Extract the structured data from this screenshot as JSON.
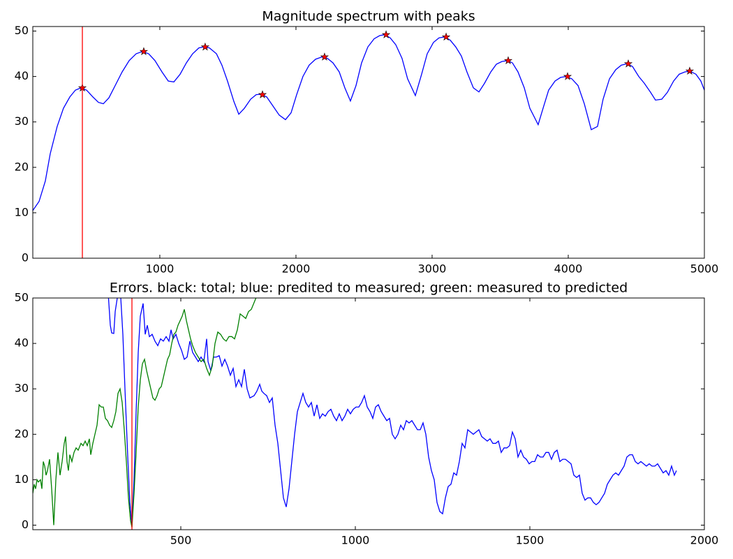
{
  "chart_data": [
    {
      "type": "line",
      "title": "Magnitude spectrum with peaks",
      "xlim": [
        67,
        5000
      ],
      "ylim": [
        0,
        51
      ],
      "xticks": [
        1000,
        2000,
        3000,
        4000,
        5000
      ],
      "yticks": [
        0,
        10,
        20,
        30,
        40,
        50
      ],
      "vline": 431,
      "vline_color": "#ff0000",
      "series": [
        {
          "color": "#0000ff",
          "x": [
            67,
            113,
            159,
            195,
            246,
            292,
            339,
            380,
            421,
            462,
            508,
            549,
            585,
            626,
            672,
            723,
            775,
            826,
            872,
            918,
            964,
            1016,
            1062,
            1103,
            1149,
            1195,
            1241,
            1287,
            1323,
            1364,
            1416,
            1456,
            1497,
            1544,
            1580,
            1621,
            1667,
            1708,
            1744,
            1785,
            1831,
            1877,
            1923,
            1964,
            2005,
            2051,
            2097,
            2144,
            2190,
            2231,
            2272,
            2318,
            2359,
            2400,
            2441,
            2482,
            2528,
            2574,
            2615,
            2651,
            2692,
            2733,
            2779,
            2820,
            2877,
            2923,
            2964,
            3010,
            3051,
            3092,
            3133,
            3174,
            3215,
            3256,
            3303,
            3344,
            3385,
            3431,
            3472,
            3513,
            3554,
            3590,
            3631,
            3677,
            3718,
            3779,
            3815,
            3856,
            3903,
            3944,
            3985,
            4026,
            4072,
            4118,
            4169,
            4215,
            4256,
            4303,
            4349,
            4390,
            4431,
            4472,
            4518,
            4559,
            4605,
            4641,
            4687,
            4728,
            4774,
            4815,
            4856,
            4892,
            4938,
            4974,
            5000
          ],
          "values": [
            10.5,
            12.5,
            17,
            23,
            29,
            33,
            35.5,
            37,
            37.5,
            37,
            35.5,
            34.3,
            34,
            35.3,
            38,
            41,
            43.5,
            45,
            45.5,
            45,
            43.5,
            41,
            39,
            38.8,
            40.5,
            43,
            45,
            46.3,
            46.5,
            46.3,
            45,
            42.5,
            39,
            34.5,
            31.7,
            33,
            35,
            36,
            36.1,
            35.5,
            33.5,
            31.5,
            30.5,
            32,
            36,
            40,
            42.5,
            43.8,
            44.3,
            44,
            43,
            41,
            37.5,
            34.6,
            38,
            43,
            46.5,
            48.3,
            49,
            49.2,
            48.5,
            47,
            44,
            39.5,
            35.8,
            40.5,
            45,
            47.5,
            48.5,
            48.7,
            48,
            46.5,
            44.5,
            41,
            37.5,
            36.6,
            38.5,
            41,
            42.7,
            43.3,
            43.5,
            43,
            41,
            37.5,
            33,
            29.4,
            33,
            37,
            39,
            39.8,
            40,
            39.5,
            38,
            34,
            28.3,
            29,
            35,
            39.5,
            41.5,
            42.5,
            42.8,
            42.2,
            40,
            38.5,
            36.5,
            34.8,
            35,
            36.5,
            39,
            40.5,
            41,
            41.2,
            40.5,
            39,
            37
          ]
        },
        {
          "color": "#ff0000",
          "marker": "star",
          "x": [
            431,
            882,
            1333,
            1754,
            2210,
            2662,
            3103,
            3559,
            3995,
            4441,
            4892
          ],
          "values": [
            37.5,
            45.5,
            46.5,
            36,
            44.3,
            49.2,
            48.7,
            43.5,
            40,
            42.8,
            41.2
          ]
        }
      ]
    },
    {
      "type": "line",
      "title": "Errors. black: total; blue: predited to measured; green: measured to predicted",
      "xlim": [
        76,
        2000
      ],
      "ylim": [
        -1,
        50
      ],
      "xticks": [
        500,
        1000,
        1500,
        2000
      ],
      "yticks": [
        0,
        10,
        20,
        30,
        40,
        50
      ],
      "vline": 360,
      "vline_color": "#ff0000",
      "series": [
        {
          "color": "#0000ff",
          "x": [
            292,
            298,
            302,
            308,
            312,
            318,
            322,
            328,
            334,
            340,
            348,
            354,
            360,
            366,
            372,
            378,
            384,
            392,
            398,
            404,
            410,
            418,
            426,
            434,
            442,
            450,
            458,
            466,
            472,
            478,
            486,
            494,
            502,
            510,
            518,
            526,
            534,
            542,
            550,
            558,
            566,
            574,
            578,
            586,
            594,
            602,
            610,
            618,
            626,
            634,
            642,
            650,
            658,
            666,
            674,
            682,
            690,
            698,
            710,
            718,
            726,
            732,
            738,
            746,
            754,
            762,
            770,
            778,
            786,
            794,
            802,
            810,
            818,
            826,
            834,
            842,
            850,
            858,
            866,
            874,
            882,
            890,
            898,
            906,
            914,
            922,
            930,
            938,
            946,
            954,
            962,
            970,
            978,
            986,
            994,
            1002,
            1010,
            1018,
            1026,
            1034,
            1042,
            1050,
            1058,
            1066,
            1074,
            1082,
            1090,
            1098,
            1106,
            1114,
            1122,
            1130,
            1138,
            1146,
            1154,
            1162,
            1170,
            1178,
            1186,
            1194,
            1202,
            1210,
            1218,
            1226,
            1234,
            1242,
            1250,
            1258,
            1266,
            1274,
            1282,
            1290,
            1298,
            1306,
            1314,
            1322,
            1330,
            1338,
            1346,
            1354,
            1362,
            1370,
            1378,
            1386,
            1394,
            1402,
            1410,
            1418,
            1426,
            1434,
            1442,
            1450,
            1458,
            1466,
            1474,
            1482,
            1490,
            1498,
            1506,
            1514,
            1522,
            1530,
            1538,
            1546,
            1554,
            1562,
            1570,
            1578,
            1586,
            1594,
            1602,
            1610,
            1618,
            1626,
            1634,
            1642,
            1650,
            1658,
            1666,
            1674,
            1682,
            1690,
            1698,
            1706,
            1714,
            1722,
            1730,
            1738,
            1746,
            1754,
            1762,
            1770,
            1778,
            1786,
            1794,
            1802,
            1810,
            1818,
            1826,
            1834,
            1842,
            1850,
            1858,
            1866,
            1874,
            1882,
            1890,
            1898,
            1906,
            1914,
            1920
          ],
          "values": [
            51,
            44,
            42.3,
            42.2,
            47,
            50,
            52,
            50,
            42,
            30,
            15,
            5,
            0,
            10,
            25,
            38,
            46,
            48.8,
            42,
            44,
            41.5,
            42,
            40.5,
            39.5,
            41,
            40.5,
            41.5,
            40.5,
            43,
            41,
            42,
            40,
            38.5,
            36.5,
            37,
            40.5,
            38,
            37,
            36,
            37,
            36,
            41,
            36,
            34,
            37,
            37,
            37.3,
            35,
            36.5,
            35,
            33,
            34.5,
            30.5,
            32,
            30.5,
            34.3,
            30,
            28,
            28.5,
            29.5,
            31,
            29.5,
            29,
            28.5,
            27,
            28,
            22,
            18,
            12,
            6,
            4,
            8,
            14,
            20,
            25,
            27,
            29,
            27,
            26,
            27,
            24,
            26.5,
            23.5,
            24.5,
            24,
            25,
            25.5,
            24,
            23,
            24.5,
            23,
            24,
            25.5,
            24.5,
            25.5,
            26,
            26,
            27,
            28.5,
            26,
            25,
            23.5,
            26,
            26.5,
            25,
            24,
            23,
            23.5,
            20,
            19,
            20,
            22,
            21,
            23,
            22.5,
            23,
            22,
            21,
            21,
            22.5,
            20,
            15,
            12,
            10,
            5,
            3,
            2.5,
            6,
            8.5,
            9,
            11.5,
            11,
            14,
            18,
            17,
            21,
            20.5,
            20,
            20.5,
            21,
            19.5,
            19,
            18.5,
            19,
            18,
            18,
            18.5,
            16,
            17,
            17,
            17.5,
            20.5,
            19,
            15,
            16.5,
            15,
            14.5,
            13.5,
            14,
            14,
            15.5,
            15,
            15,
            16,
            16,
            14.5,
            16,
            16.5,
            14,
            14.5,
            14.5,
            14,
            13.5,
            11,
            10.5,
            11,
            7,
            5.5,
            6,
            6,
            5,
            4.5,
            5,
            6,
            7,
            9,
            10,
            11,
            11.5,
            11,
            12,
            13,
            15,
            15.5,
            15.5,
            14,
            13.5,
            14,
            13.5,
            13,
            13.5,
            13,
            13,
            13.5,
            12.5,
            11.5,
            12,
            11,
            13,
            11,
            12
          ]
        },
        {
          "color": "#008000",
          "x": [
            76,
            80,
            84,
            88,
            92,
            98,
            102,
            106,
            110,
            114,
            118,
            124,
            130,
            136,
            142,
            148,
            154,
            160,
            166,
            170,
            174,
            178,
            182,
            188,
            194,
            200,
            206,
            214,
            220,
            226,
            232,
            238,
            242,
            248,
            254,
            260,
            266,
            272,
            278,
            284,
            290,
            296,
            302,
            308,
            314,
            320,
            326,
            332,
            338,
            344,
            350,
            356,
            360,
            366,
            372,
            378,
            384,
            390,
            396,
            402,
            408,
            414,
            420,
            426,
            432,
            438,
            444,
            450,
            456,
            462,
            468,
            474,
            480,
            486,
            492,
            498,
            504,
            510,
            516,
            522,
            528,
            534,
            542,
            550,
            558,
            566,
            574,
            582,
            590,
            598,
            606,
            614,
            622,
            630,
            638,
            646,
            654,
            662,
            670,
            678,
            686,
            694,
            702,
            710,
            718
          ],
          "values": [
            7,
            9,
            8,
            10,
            9.5,
            10,
            8,
            14,
            13,
            11,
            12,
            14.5,
            8,
            0,
            10,
            16,
            11,
            14,
            18,
            19.5,
            14,
            12,
            15.5,
            14,
            16,
            17,
            16.5,
            18,
            17.5,
            18.5,
            17.5,
            19,
            15.5,
            18,
            20,
            22,
            26.5,
            26,
            26,
            23.5,
            23,
            22,
            21.5,
            23,
            25,
            29,
            30,
            27,
            21,
            14,
            6,
            1,
            -0.5,
            7,
            16,
            26,
            32,
            35.5,
            36.5,
            34,
            32,
            30,
            28,
            27.5,
            28.5,
            30,
            30.5,
            32.5,
            34.5,
            36.5,
            37.5,
            40,
            42,
            42.5,
            44,
            45,
            46,
            47.5,
            45,
            43,
            41,
            39.5,
            38,
            37,
            36,
            36.5,
            34.5,
            33,
            35,
            40,
            42.5,
            42,
            41,
            40.5,
            41.5,
            41.5,
            41,
            43,
            46.5,
            46,
            45.5,
            47,
            47.5,
            49,
            50.5
          ]
        }
      ]
    }
  ]
}
